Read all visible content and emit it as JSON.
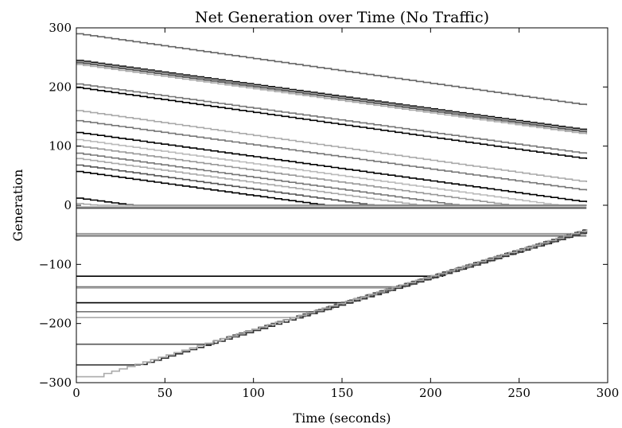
{
  "chart_data": {
    "type": "line",
    "title": "Net Generation over Time (No Traffic)",
    "xlabel": "Time (seconds)",
    "ylabel": "Generation",
    "xlim": [
      0,
      300
    ],
    "ylim": [
      -300,
      300
    ],
    "x_ticks": [
      "0",
      "50",
      "100",
      "150",
      "200",
      "250",
      "300"
    ],
    "y_ticks": [
      "300",
      "200",
      "100",
      "0",
      "−100",
      "−200",
      "−300"
    ],
    "grid": false,
    "legend": "none",
    "series_style": "step lines in grayscale",
    "series": [
      {
        "color": "#666666",
        "kind": "decay",
        "y0": 290,
        "slope": -0.42
      },
      {
        "color": "#111111",
        "kind": "decay",
        "y0": 245,
        "slope": -0.41
      },
      {
        "color": "#999999",
        "kind": "decay",
        "y0": 243,
        "slope": -0.41
      },
      {
        "color": "#555555",
        "kind": "decay",
        "y0": 241,
        "slope": -0.41
      },
      {
        "color": "#aaaaaa",
        "kind": "decay",
        "y0": 238,
        "slope": -0.41
      },
      {
        "color": "#777777",
        "kind": "decay",
        "y0": 205,
        "slope": -0.41
      },
      {
        "color": "#000000",
        "kind": "decay",
        "y0": 199,
        "slope": -0.42
      },
      {
        "color": "#aaaaaa",
        "kind": "decay",
        "y0": 160,
        "slope": -0.42
      },
      {
        "color": "#777777",
        "kind": "decay",
        "y0": 143,
        "slope": -0.41
      },
      {
        "color": "#000000",
        "kind": "decay",
        "y0": 123,
        "slope": -0.41
      },
      {
        "color": "#bbbbbb",
        "kind": "decay",
        "y0": 111,
        "slope": -0.41
      },
      {
        "color": "#999999",
        "kind": "decay",
        "y0": 100,
        "slope": -0.41
      },
      {
        "color": "#777777",
        "kind": "decay",
        "y0": 88,
        "slope": -0.41
      },
      {
        "color": "#aaaaaa",
        "kind": "decay",
        "y0": 79,
        "slope": -0.41
      },
      {
        "color": "#555555",
        "kind": "decay",
        "y0": 68,
        "slope": -0.41
      },
      {
        "color": "#000000",
        "kind": "decay",
        "y0": 57,
        "slope": -0.41
      },
      {
        "color": "#000000",
        "kind": "decay",
        "y0": 12,
        "slope": -0.4
      },
      {
        "color": "#aaaaaa",
        "kind": "decay",
        "y0": 3,
        "slope": -0.3
      },
      {
        "color": "#999999",
        "kind": "flat",
        "y0": -3
      },
      {
        "color": "#555555",
        "kind": "flat",
        "y0": -5
      },
      {
        "color": "#999999",
        "kind": "flat",
        "y0": -48
      },
      {
        "color": "#bbbbbb",
        "kind": "flat",
        "y0": -50
      },
      {
        "color": "#777777",
        "kind": "flat",
        "y0": -52
      },
      {
        "color": "#000000",
        "kind": "rise",
        "y0": -120,
        "x0": 0
      },
      {
        "color": "#777777",
        "kind": "rise",
        "y0": -138,
        "x0": 0
      },
      {
        "color": "#aaaaaa",
        "kind": "rise",
        "y0": -140,
        "x0": 0
      },
      {
        "color": "#000000",
        "kind": "rise",
        "y0": -165,
        "x0": 0
      },
      {
        "color": "#777777",
        "kind": "rise",
        "y0": -180,
        "x0": 0
      },
      {
        "color": "#aaaaaa",
        "kind": "rise",
        "y0": -190,
        "x0": 0
      },
      {
        "color": "#555555",
        "kind": "rise",
        "y0": -235,
        "x0": 0
      },
      {
        "color": "#333333",
        "kind": "rise",
        "y0": -270,
        "x0": 0
      },
      {
        "color": "#aaaaaa",
        "kind": "rise",
        "y0": -290,
        "x0": 0
      }
    ],
    "rise_end": {
      "x": 288,
      "y": -42
    }
  }
}
